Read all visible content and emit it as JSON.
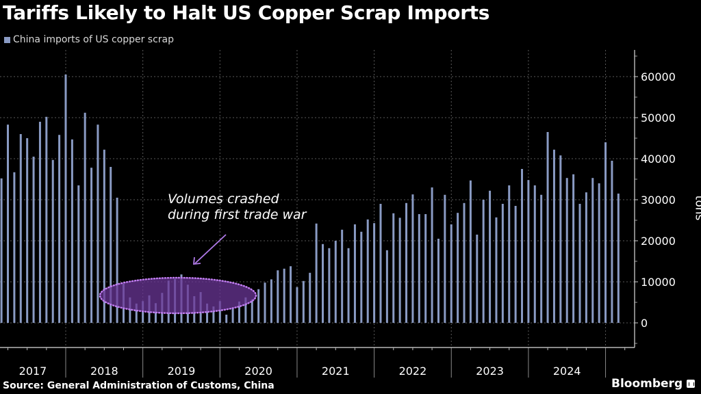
{
  "header": {
    "title": "Tariffs Likely to Halt US Copper Scrap Imports"
  },
  "annotation": {
    "line1": "Volumes crashed",
    "line2": "during first trade war",
    "highlight_color": "#6a3596",
    "highlight_stroke": "#c07cf0",
    "arrow_color": "#b07ae8"
  },
  "footer": {
    "source": "Source: General Administration of Customs, China",
    "brand": "Bloomberg"
  },
  "chart_data": {
    "type": "bar",
    "title": "Tariffs Likely to Halt US Copper Scrap Imports",
    "xlabel": "",
    "ylabel": "tons",
    "ylim": [
      -6000,
      66000
    ],
    "yticks": [
      0,
      10000,
      20000,
      30000,
      40000,
      50000,
      60000
    ],
    "ytick_labels": [
      "0",
      "10000",
      "20000",
      "30000",
      "40000",
      "50000",
      "60000"
    ],
    "grid": true,
    "legend_position": "top-left",
    "bar_color": "#8a9bc4",
    "x_start": "2017-03",
    "x_end": "2025-03",
    "year_labels": [
      "2017",
      "2018",
      "2019",
      "2020",
      "2021",
      "2022",
      "2023",
      "2024"
    ],
    "series": [
      {
        "name": "China imports of US copper scrap",
        "monthly": [
          {
            "year": 2017,
            "start_month": 3,
            "values": [
              35200,
              48300,
              36700,
              46000,
              45000,
              40500,
              49000,
              50200,
              39700,
              45800
            ]
          },
          {
            "year": 2018,
            "start_month": 1,
            "values": [
              60500,
              44700,
              33500,
              51200,
              37800,
              48300,
              42200,
              38000,
              30500,
              9500,
              6200,
              4700
            ]
          },
          {
            "year": 2019,
            "start_month": 1,
            "values": [
              5300,
              6700,
              4800,
              7300,
              10300,
              10700,
              11800,
              9300,
              6500,
              7500,
              4700,
              4000
            ]
          },
          {
            "year": 2020,
            "start_month": 1,
            "values": [
              5300,
              2000,
              3700,
              5200,
              6200,
              5700,
              8200,
              9800,
              10600,
              12800,
              13200,
              13800
            ]
          },
          {
            "year": 2021,
            "start_month": 1,
            "values": [
              8700,
              10200,
              12200,
              24200,
              19200,
              18200,
              20000,
              22700,
              18200,
              24000,
              22200,
              25200
            ]
          },
          {
            "year": 2022,
            "start_month": 1,
            "values": [
              24300,
              29000,
              17700,
              26700,
              25600,
              29200,
              31300,
              26500,
              26500,
              33000,
              20500,
              31200
            ]
          },
          {
            "year": 2023,
            "start_month": 1,
            "values": [
              24000,
              26800,
              29200,
              34700,
              21500,
              30000,
              32200,
              25700,
              29000,
              33500,
              28500,
              37500
            ]
          },
          {
            "year": 2024,
            "start_month": 1,
            "values": [
              34800,
              33500,
              31200,
              46500,
              42200,
              40800,
              35300,
              36200,
              29000,
              31800,
              35300,
              34000
            ]
          },
          {
            "year": 2025,
            "start_month": 1,
            "values": [
              44000,
              39500,
              31500
            ]
          }
        ]
      }
    ],
    "annotations": [
      {
        "text": "Volumes crashed during first trade war",
        "target_period": "2018-10 to 2020-05",
        "style": "highlight-ellipse-with-arrow"
      }
    ]
  }
}
